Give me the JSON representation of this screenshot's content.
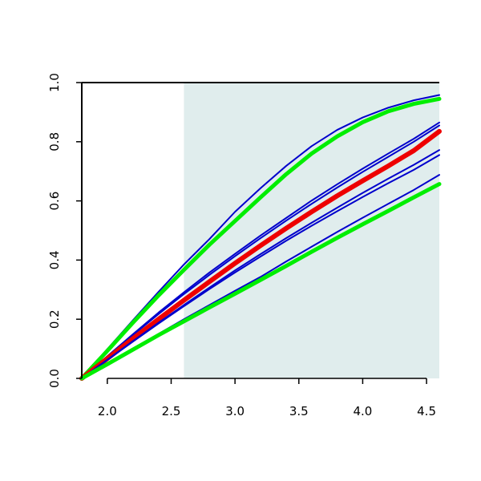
{
  "chart_data": {
    "type": "line",
    "title": "",
    "xlabel": "",
    "ylabel": "",
    "xlim": [
      1.8,
      4.6
    ],
    "ylim": [
      0,
      1
    ],
    "x_ticks": [
      "2.0",
      "2.5",
      "3.0",
      "3.5",
      "4.0",
      "4.5"
    ],
    "y_ticks": [
      "0.0",
      "0.2",
      "0.4",
      "0.6",
      "0.8",
      "1.0"
    ],
    "shaded_region": {
      "x_from": 2.6,
      "x_to": 4.6,
      "color": "#e0eded"
    },
    "grid": false,
    "legend": "none",
    "series": [
      {
        "color": "#0000cc",
        "width": 2,
        "x": [
          1.8,
          2.0,
          2.2,
          2.4,
          2.6,
          2.8,
          3.0,
          3.2,
          3.4,
          3.6,
          3.8,
          4.0,
          4.2,
          4.4,
          4.6
        ],
        "y": [
          0.0,
          0.099,
          0.196,
          0.292,
          0.385,
          0.471,
          0.563,
          0.643,
          0.718,
          0.785,
          0.84,
          0.882,
          0.915,
          0.94,
          0.958
        ]
      },
      {
        "color": "#00ee00",
        "width": 5,
        "x": [
          1.8,
          2.0,
          2.2,
          2.4,
          2.6,
          2.8,
          3.0,
          3.2,
          3.4,
          3.6,
          3.8,
          4.0,
          4.2,
          4.4,
          4.6
        ],
        "y": [
          0.0,
          0.093,
          0.188,
          0.28,
          0.367,
          0.452,
          0.532,
          0.612,
          0.69,
          0.76,
          0.818,
          0.866,
          0.903,
          0.928,
          0.945
        ]
      },
      {
        "color": "#0000cc",
        "width": 2,
        "x": [
          1.8,
          2.0,
          2.2,
          2.4,
          2.6,
          2.8,
          3.0,
          3.2,
          3.4,
          3.6,
          3.8,
          4.0,
          4.2,
          4.4,
          4.6
        ],
        "y": [
          0.0,
          0.075,
          0.149,
          0.222,
          0.291,
          0.358,
          0.421,
          0.483,
          0.542,
          0.601,
          0.656,
          0.709,
          0.76,
          0.81,
          0.865
        ]
      },
      {
        "color": "#0000cc",
        "width": 2,
        "x": [
          1.8,
          2.0,
          2.2,
          2.4,
          2.6,
          2.8,
          3.0,
          3.2,
          3.4,
          3.6,
          3.8,
          4.0,
          4.2,
          4.4,
          4.6
        ],
        "y": [
          0.0,
          0.073,
          0.146,
          0.217,
          0.285,
          0.35,
          0.413,
          0.474,
          0.533,
          0.59,
          0.645,
          0.698,
          0.749,
          0.8,
          0.855
        ]
      },
      {
        "color": "#ee0000",
        "width": 6,
        "x": [
          1.8,
          2.0,
          2.2,
          2.4,
          2.6,
          2.8,
          3.0,
          3.2,
          3.4,
          3.6,
          3.8,
          4.0,
          4.2,
          4.4,
          4.6
        ],
        "y": [
          0.0,
          0.067,
          0.134,
          0.2,
          0.264,
          0.327,
          0.389,
          0.449,
          0.507,
          0.563,
          0.617,
          0.668,
          0.718,
          0.77,
          0.835
        ]
      },
      {
        "color": "#0000cc",
        "width": 2,
        "x": [
          1.8,
          2.0,
          2.2,
          2.4,
          2.6,
          2.8,
          3.0,
          3.2,
          3.4,
          3.6,
          3.8,
          4.0,
          4.2,
          4.4,
          4.6
        ],
        "y": [
          0.0,
          0.063,
          0.126,
          0.188,
          0.248,
          0.307,
          0.365,
          0.42,
          0.474,
          0.526,
          0.577,
          0.627,
          0.675,
          0.722,
          0.772
        ]
      },
      {
        "color": "#0000cc",
        "width": 2,
        "x": [
          1.8,
          2.0,
          2.2,
          2.4,
          2.6,
          2.8,
          3.0,
          3.2,
          3.4,
          3.6,
          3.8,
          4.0,
          4.2,
          4.4,
          4.6
        ],
        "y": [
          0.0,
          0.062,
          0.124,
          0.185,
          0.244,
          0.302,
          0.358,
          0.412,
          0.465,
          0.516,
          0.565,
          0.613,
          0.66,
          0.705,
          0.755
        ]
      },
      {
        "color": "#0000cc",
        "width": 2,
        "x": [
          1.8,
          2.0,
          2.2,
          2.4,
          2.6,
          2.8,
          3.0,
          3.2,
          3.4,
          3.6,
          3.8,
          4.0,
          4.2,
          4.4,
          4.6
        ],
        "y": [
          0.0,
          0.05,
          0.1,
          0.15,
          0.2,
          0.248,
          0.296,
          0.343,
          0.395,
          0.445,
          0.495,
          0.543,
          0.59,
          0.637,
          0.688
        ]
      },
      {
        "color": "#00ee00",
        "width": 5,
        "x": [
          1.8,
          2.0,
          2.2,
          2.4,
          2.6,
          2.8,
          3.0,
          3.2,
          3.4,
          3.6,
          3.8,
          4.0,
          4.2,
          4.4,
          4.6
        ],
        "y": [
          0.0,
          0.048,
          0.097,
          0.146,
          0.193,
          0.24,
          0.286,
          0.333,
          0.38,
          0.428,
          0.475,
          0.521,
          0.566,
          0.612,
          0.657
        ]
      }
    ]
  }
}
